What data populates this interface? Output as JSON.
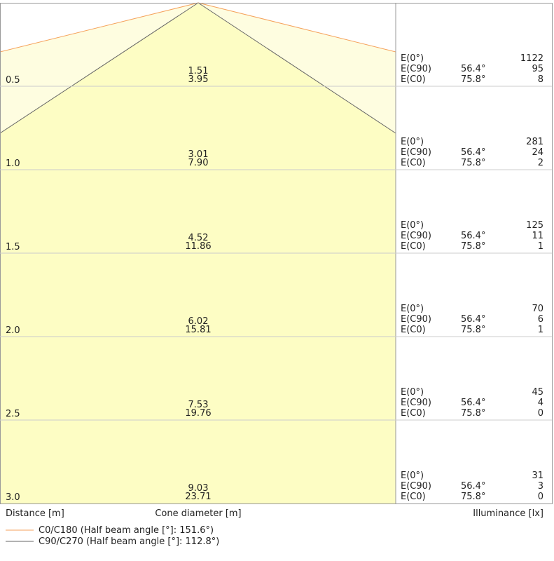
{
  "rows": [
    {
      "distance": "0.5",
      "diameters": [
        "1.51",
        "3.95"
      ],
      "illuminance": [
        {
          "label": "E(0°)",
          "value": "1122"
        },
        {
          "label": "E(C90)",
          "angle": "56.4°",
          "value": "95"
        },
        {
          "label": "E(C0)",
          "angle": "75.8°",
          "value": "8"
        }
      ]
    },
    {
      "distance": "1.0",
      "diameters": [
        "3.01",
        "7.90"
      ],
      "illuminance": [
        {
          "label": "E(0°)",
          "value": "281"
        },
        {
          "label": "E(C90)",
          "angle": "56.4°",
          "value": "24"
        },
        {
          "label": "E(C0)",
          "angle": "75.8°",
          "value": "2"
        }
      ]
    },
    {
      "distance": "1.5",
      "diameters": [
        "4.52",
        "11.86"
      ],
      "illuminance": [
        {
          "label": "E(0°)",
          "value": "125"
        },
        {
          "label": "E(C90)",
          "angle": "56.4°",
          "value": "11"
        },
        {
          "label": "E(C0)",
          "angle": "75.8°",
          "value": "1"
        }
      ]
    },
    {
      "distance": "2.0",
      "diameters": [
        "6.02",
        "15.81"
      ],
      "illuminance": [
        {
          "label": "E(0°)",
          "value": "70"
        },
        {
          "label": "E(C90)",
          "angle": "56.4°",
          "value": "6"
        },
        {
          "label": "E(C0)",
          "angle": "75.8°",
          "value": "1"
        }
      ]
    },
    {
      "distance": "2.5",
      "diameters": [
        "7.53",
        "19.76"
      ],
      "illuminance": [
        {
          "label": "E(0°)",
          "value": "45"
        },
        {
          "label": "E(C90)",
          "angle": "56.4°",
          "value": "4"
        },
        {
          "label": "E(C0)",
          "angle": "75.8°",
          "value": "0"
        }
      ]
    },
    {
      "distance": "3.0",
      "diameters": [
        "9.03",
        "23.71"
      ],
      "illuminance": [
        {
          "label": "E(0°)",
          "value": "31"
        },
        {
          "label": "E(C90)",
          "angle": "56.4°",
          "value": "3"
        },
        {
          "label": "E(C0)",
          "angle": "75.8°",
          "value": "0"
        }
      ]
    }
  ],
  "footer": {
    "distance": "Distance [m]",
    "cone": "Cone diameter [m]",
    "illuminance": "Illuminance [lx]"
  },
  "legend": [
    {
      "label": "C0/C180 (Half beam angle [°]: 151.6°)",
      "color": "#f5a25c"
    },
    {
      "label": "C90/C270 (Half beam angle [°]: 112.8°)",
      "color": "#666666"
    }
  ]
}
